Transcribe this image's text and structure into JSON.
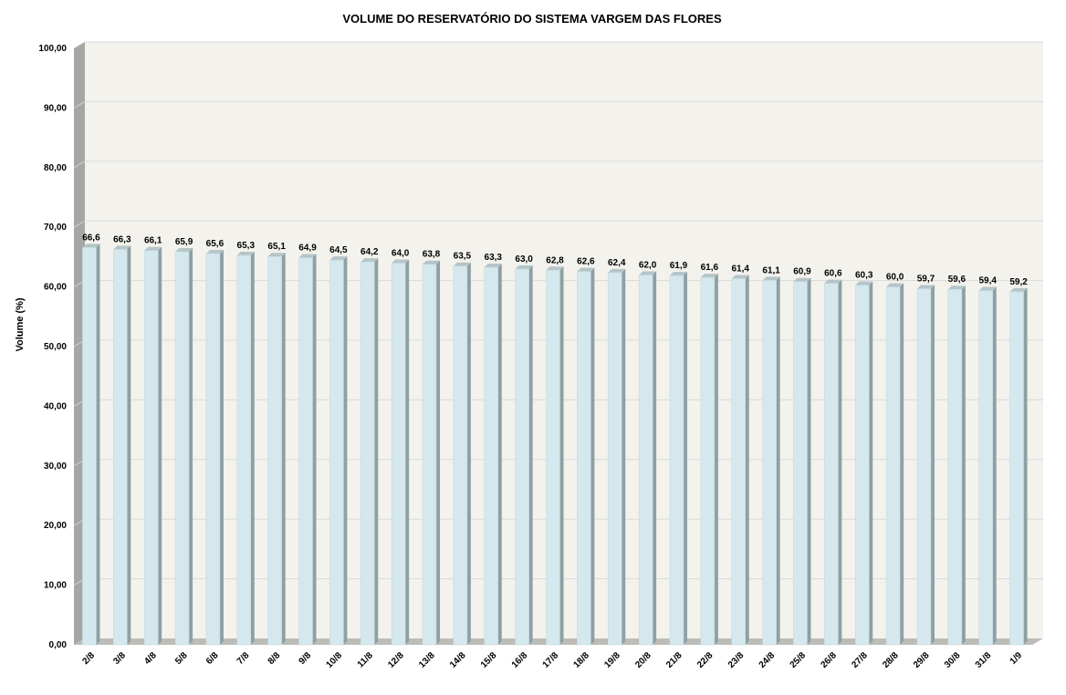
{
  "chart_data": {
    "type": "bar",
    "title": "VOLUME DO RESERVATÓRIO DO SISTEMA VARGEM DAS FLORES",
    "xlabel": "",
    "ylabel": "Volume (%)",
    "ylim": [
      0,
      100
    ],
    "yticks": [
      "0,00",
      "10,00",
      "20,00",
      "30,00",
      "40,00",
      "50,00",
      "60,00",
      "70,00",
      "80,00",
      "90,00",
      "100,00"
    ],
    "grid": true,
    "three_d": true,
    "categories": [
      "2/8",
      "3/8",
      "4/8",
      "5/8",
      "6/8",
      "7/8",
      "8/8",
      "9/8",
      "10/8",
      "11/8",
      "12/8",
      "13/8",
      "14/8",
      "15/8",
      "16/8",
      "17/8",
      "18/8",
      "19/8",
      "20/8",
      "21/8",
      "22/8",
      "23/8",
      "24/8",
      "25/8",
      "26/8",
      "27/8",
      "28/8",
      "29/8",
      "30/8",
      "31/8",
      "1/9"
    ],
    "values": [
      66.6,
      66.3,
      66.1,
      65.9,
      65.6,
      65.3,
      65.1,
      64.9,
      64.5,
      64.2,
      64.0,
      63.8,
      63.5,
      63.3,
      63.0,
      62.8,
      62.6,
      62.4,
      62.0,
      61.9,
      61.6,
      61.4,
      61.1,
      60.9,
      60.6,
      60.3,
      60.0,
      59.7,
      59.6,
      59.4,
      59.2
    ],
    "value_labels": [
      "66,6",
      "66,3",
      "66,1",
      "65,9",
      "65,6",
      "65,3",
      "65,1",
      "64,9",
      "64,5",
      "64,2",
      "64,0",
      "63,8",
      "63,5",
      "63,3",
      "63,0",
      "62,8",
      "62,6",
      "62,4",
      "62,0",
      "61,9",
      "61,6",
      "61,4",
      "61,1",
      "60,9",
      "60,6",
      "60,3",
      "60,0",
      "59,7",
      "59,6",
      "59,4",
      "59,2"
    ],
    "colors": {
      "bar_front": "#d4e8ee",
      "bar_side": "#8fa0a3",
      "bar_top": "#b5c5c8",
      "plot_back": "#f3f2ed",
      "left_wall": "#a6a6a2",
      "floor": "#bdbdb8",
      "gridline": "#d9d9d9",
      "text": "#000000"
    }
  }
}
